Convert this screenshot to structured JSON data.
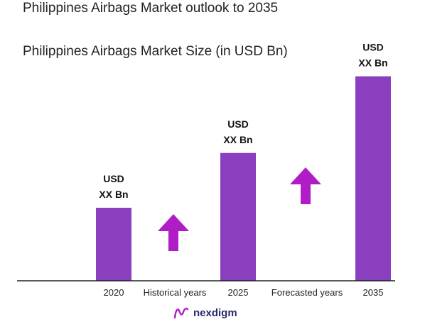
{
  "chart_data": {
    "type": "bar",
    "title": "Philippines Airbags Market outlook to 2035",
    "subtitle": "Philippines Airbags Market Size (in USD Bn)",
    "categories": [
      "2020",
      "2025",
      "2035"
    ],
    "values": [
      1.0,
      1.75,
      2.8
    ],
    "value_labels": [
      [
        "USD",
        "XX Bn"
      ],
      [
        "USD",
        "XX Bn"
      ],
      [
        "USD",
        "XX Bn"
      ]
    ],
    "period_labels": [
      "Historical years",
      "Forecasted years"
    ],
    "ylim": [
      0,
      3
    ],
    "grid": false,
    "bar_color": "#8a3fbf",
    "arrow_color": "#b01cc6"
  },
  "brand": {
    "name": "nexdigm",
    "color": "#2b2b6b"
  }
}
